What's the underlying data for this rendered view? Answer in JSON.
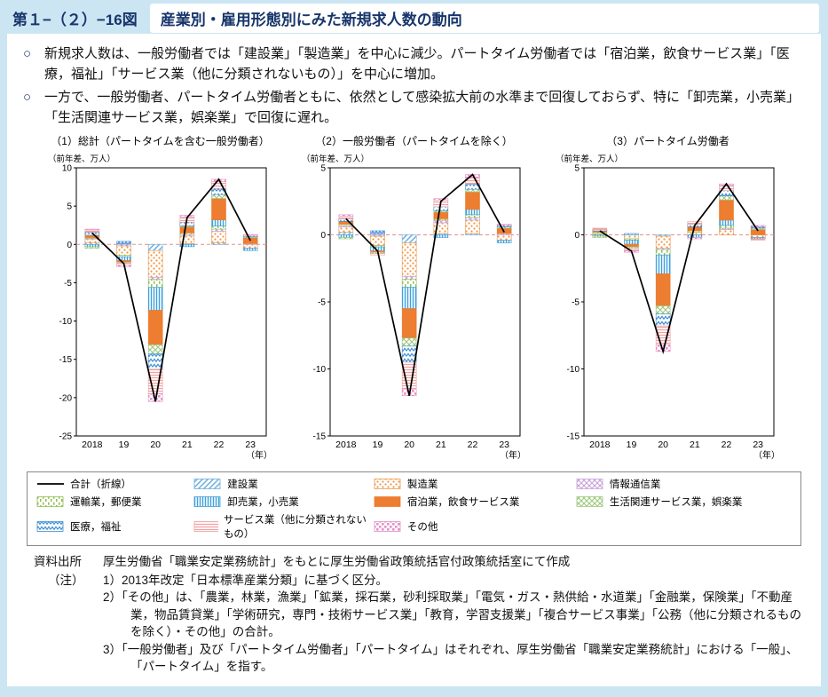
{
  "header": {
    "figure_no": "第１−（２）−16図",
    "title": "産業別・雇用形態別にみた新規求人数の動向"
  },
  "bullet_marker": "○",
  "bullets": [
    "新規求人数は、一般労働者では「建設業」「製造業」を中心に減少。パートタイム労働者では「宿泊業，飲食サービス業」「医療，福祉」「サービス業（他に分類されないもの）」を中心に増加。",
    "一方で、一般労働者、パートタイム労働者ともに、依然として感染拡大前の水準まで回復しておらず、特に「卸売業，小売業」「生活関連サービス業，娯楽業」で回復に遅れ。"
  ],
  "colors": {
    "page_background": "#cbe5f3",
    "header_text": "#17356b",
    "zero_line": "#e58f8f",
    "total_line": "#000000"
  },
  "industry_styles": [
    {
      "name": "建設業",
      "pattern": "diag",
      "color": "#6aaede"
    },
    {
      "name": "製造業",
      "pattern": "dots",
      "color": "#ef9748"
    },
    {
      "name": "情報通信業",
      "pattern": "diagcross",
      "color": "#c9a0d8"
    },
    {
      "name": "運輸業，郵便業",
      "pattern": "vdash",
      "color": "#8fbf4d"
    },
    {
      "name": "卸売業，小売業",
      "pattern": "vlines",
      "color": "#3fa0dc"
    },
    {
      "name": "宿泊業，飲食サービス業",
      "pattern": "solid",
      "color": "#ed7d31"
    },
    {
      "name": "生活関連サービス業，娯楽業",
      "pattern": "diagcross",
      "color": "#9dc87e"
    },
    {
      "name": "医療，福祉",
      "pattern": "zigzag",
      "color": "#3f8fd2"
    },
    {
      "name": "サービス業（他に分類されないもの）",
      "pattern": "hlines",
      "color": "#f2a0a0"
    },
    {
      "name": "その他",
      "pattern": "checker",
      "color": "#e590c8"
    }
  ],
  "legend": {
    "items": [
      {
        "label": "合計（折線）",
        "style": "line"
      },
      {
        "label": "建設業",
        "style": 0
      },
      {
        "label": "製造業",
        "style": 1
      },
      {
        "label": "情報通信業",
        "style": 2
      },
      {
        "label": "運輸業，郵便業",
        "style": 3
      },
      {
        "label": "卸売業，小売業",
        "style": 4
      },
      {
        "label": "宿泊業，飲食サービス業",
        "style": 5
      },
      {
        "label": "生活関連サービス業，娯楽業",
        "style": 6
      },
      {
        "label": "医療，福祉",
        "style": 7
      },
      {
        "label": "サービス業（他に分類されないもの）",
        "style": 8
      },
      {
        "label": "その他",
        "style": 9
      }
    ]
  },
  "chart_data": [
    {
      "type": "bar",
      "stacked": true,
      "title": "（1）総計（パートタイムを含む一般労働者）",
      "unit_label": "（前年差、万人）",
      "x_axis_suffix": "（年）",
      "categories": [
        "2018",
        "19",
        "20",
        "21",
        "22",
        "23"
      ],
      "ylim": [
        -25,
        10
      ],
      "ytick_step": 5,
      "series": [
        {
          "name": "建設業",
          "values": [
            0.2,
            -0.2,
            -0.8,
            0.1,
            0.2,
            0.0
          ]
        },
        {
          "name": "製造業",
          "values": [
            0.5,
            -1.2,
            -3.5,
            1.0,
            1.5,
            -0.5
          ]
        },
        {
          "name": "情報通信業",
          "values": [
            0.1,
            0.1,
            -0.3,
            0.2,
            0.3,
            0.1
          ]
        },
        {
          "name": "運輸業，郵便業",
          "values": [
            0.1,
            -0.2,
            -1.0,
            0.2,
            0.4,
            0.0
          ]
        },
        {
          "name": "卸売業，小売業",
          "values": [
            -0.3,
            -0.5,
            -3.0,
            -0.3,
            0.8,
            -0.3
          ]
        },
        {
          "name": "宿泊業，飲食サービス業",
          "values": [
            0.3,
            -0.2,
            -4.5,
            0.8,
            2.8,
            0.8
          ]
        },
        {
          "name": "生活関連サービス業，娯楽業",
          "values": [
            -0.2,
            -0.1,
            -1.2,
            0.1,
            0.5,
            0.1
          ]
        },
        {
          "name": "医療，福祉",
          "values": [
            0.4,
            0.3,
            -2.0,
            0.5,
            0.8,
            0.2
          ]
        },
        {
          "name": "サービス業（他に分類されないもの）",
          "values": [
            0.3,
            -0.3,
            -3.2,
            0.7,
            0.9,
            0.0
          ]
        },
        {
          "name": "その他",
          "values": [
            0.1,
            -0.2,
            -1.0,
            0.2,
            0.3,
            0.1
          ]
        }
      ],
      "line_series": {
        "name": "合計（折線）",
        "values": [
          1.5,
          -2.5,
          -20.5,
          3.5,
          8.5,
          0.5
        ]
      }
    },
    {
      "type": "bar",
      "stacked": true,
      "title": "（2）一般労働者（パートタイムを除く）",
      "unit_label": "（前年差、万人）",
      "x_axis_suffix": "（年）",
      "categories": [
        "2018",
        "19",
        "20",
        "21",
        "22",
        "23"
      ],
      "ylim": [
        -15,
        5
      ],
      "ytick_step": 5,
      "series": [
        {
          "name": "建設業",
          "values": [
            0.2,
            -0.1,
            -0.6,
            0.1,
            0.1,
            0.0
          ]
        },
        {
          "name": "製造業",
          "values": [
            0.4,
            -0.7,
            -2.5,
            0.8,
            1.0,
            -0.4
          ]
        },
        {
          "name": "情報通信業",
          "values": [
            0.1,
            0.1,
            -0.2,
            0.2,
            0.2,
            0.1
          ]
        },
        {
          "name": "運輸業，郵便業",
          "values": [
            0.1,
            -0.1,
            -0.6,
            0.1,
            0.2,
            0.0
          ]
        },
        {
          "name": "卸売業，小売業",
          "values": [
            -0.2,
            -0.3,
            -1.6,
            -0.2,
            0.4,
            -0.2
          ]
        },
        {
          "name": "宿泊業，飲食サービス業",
          "values": [
            0.2,
            -0.1,
            -2.2,
            0.5,
            1.3,
            0.4
          ]
        },
        {
          "name": "生活関連サービス業，娯楽業",
          "values": [
            -0.1,
            -0.1,
            -0.6,
            0.1,
            0.2,
            0.1
          ]
        },
        {
          "name": "医療，福祉",
          "values": [
            0.2,
            0.2,
            -1.2,
            0.3,
            0.4,
            0.1
          ]
        },
        {
          "name": "サービス業（他に分類されないもの）",
          "values": [
            0.2,
            -0.1,
            -2.0,
            0.5,
            0.5,
            0.0
          ]
        },
        {
          "name": "その他",
          "values": [
            0.1,
            0.0,
            -0.5,
            0.1,
            0.2,
            0.1
          ]
        }
      ],
      "line_series": {
        "name": "合計（折線）",
        "values": [
          1.2,
          -1.2,
          -12.0,
          2.5,
          4.5,
          0.2
        ]
      }
    },
    {
      "type": "bar",
      "stacked": true,
      "title": "（3）パートタイム労働者",
      "unit_label": "（前年差、万人）",
      "x_axis_suffix": "（年）",
      "categories": [
        "2018",
        "19",
        "20",
        "21",
        "22",
        "23"
      ],
      "ylim": [
        -15,
        5
      ],
      "ytick_step": 5,
      "series": [
        {
          "name": "建設業",
          "values": [
            0.0,
            0.0,
            -0.1,
            0.0,
            0.0,
            0.0
          ]
        },
        {
          "name": "製造業",
          "values": [
            0.1,
            -0.3,
            -0.9,
            0.2,
            0.4,
            -0.2
          ]
        },
        {
          "name": "情報通信業",
          "values": [
            0.0,
            0.0,
            -0.1,
            0.0,
            0.1,
            0.0
          ]
        },
        {
          "name": "運輸業，郵便業",
          "values": [
            0.1,
            -0.1,
            -0.4,
            0.1,
            0.2,
            0.0
          ]
        },
        {
          "name": "卸売業，小売業",
          "values": [
            -0.1,
            -0.3,
            -1.4,
            -0.2,
            0.4,
            -0.1
          ]
        },
        {
          "name": "宿泊業，飲食サービス業",
          "values": [
            0.1,
            -0.2,
            -2.4,
            0.3,
            1.5,
            0.4
          ]
        },
        {
          "name": "生活関連サービス業，娯楽業",
          "values": [
            -0.1,
            -0.1,
            -0.6,
            0.0,
            0.3,
            0.1
          ]
        },
        {
          "name": "医療，福祉",
          "values": [
            0.1,
            0.1,
            -0.9,
            0.2,
            0.4,
            0.1
          ]
        },
        {
          "name": "サービス業（他に分類されないもの）",
          "values": [
            0.1,
            -0.2,
            -1.4,
            0.2,
            0.4,
            -0.1
          ]
        },
        {
          "name": "その他",
          "values": [
            0.0,
            -0.1,
            -0.5,
            -0.1,
            0.1,
            0.1
          ]
        }
      ],
      "line_series": {
        "name": "合計（折線）",
        "values": [
          0.3,
          -1.2,
          -8.7,
          0.7,
          3.8,
          0.3
        ]
      }
    }
  ],
  "footer": {
    "source_label": "資料出所",
    "source_text": "厚生労働省「職業安定業務統計」をもとに厚生労働省政策統括官付政策統括室にて作成",
    "note_label": "（注）",
    "notes": [
      "1）2013年改定「日本標準産業分類」に基づく区分。",
      "2）「その他」は、「農業，林業，漁業」「鉱業，採石業，砂利採取業」「電気・ガス・熱供給・水道業」「金融業，保険業」「不動産業，物品賃貸業」「学術研究，専門・技術サービス業」「教育，学習支援業」「複合サービス事業」「公務（他に分類されるものを除く）・その他」の合計。",
      "3）「一般労働者」及び「パートタイム労働者」「パートタイム」はそれぞれ、厚生労働省「職業安定業務統計」における「一般」、「パートタイム」を指す。"
    ]
  }
}
